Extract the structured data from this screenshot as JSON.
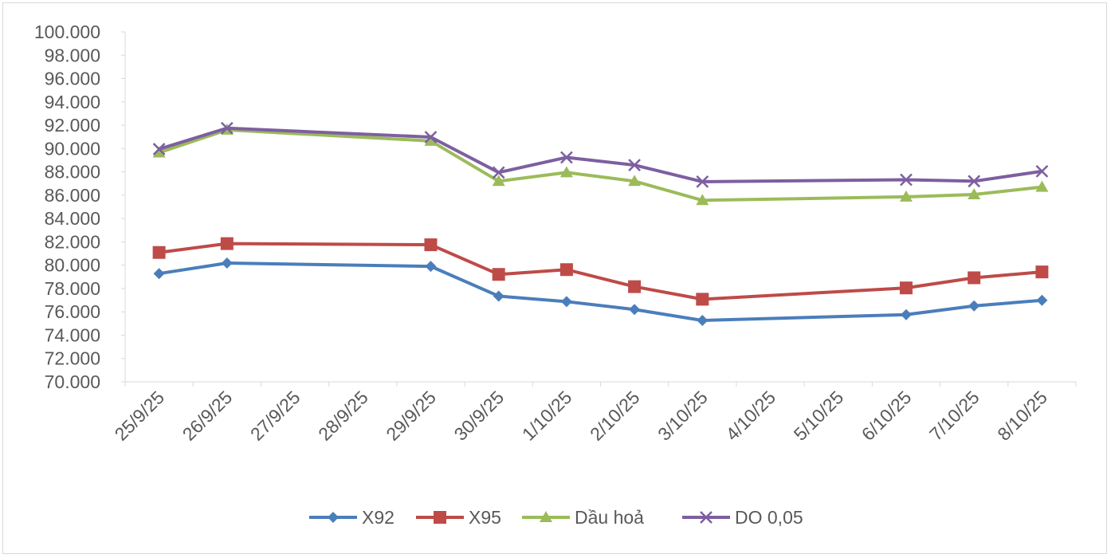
{
  "chart_data": {
    "type": "line",
    "title": "",
    "xlabel": "",
    "ylabel": "",
    "categories": [
      "25/9/25",
      "26/9/25",
      "27/9/25",
      "28/9/25",
      "29/9/25",
      "30/9/25",
      "1/10/25",
      "2/10/25",
      "3/10/25",
      "4/10/25",
      "5/10/25",
      "6/10/25",
      "7/10/25",
      "8/10/25"
    ],
    "ylim": [
      70000,
      100000
    ],
    "ytick_labels": [
      "70.000",
      "72.000",
      "74.000",
      "76.000",
      "78.000",
      "80.000",
      "82.000",
      "84.000",
      "86.000",
      "88.000",
      "90.000",
      "92.000",
      "94.000",
      "96.000",
      "98.000",
      "100.000"
    ],
    "grid": false,
    "legend_position": "bottom",
    "series": [
      {
        "name": "X92",
        "color": "#4a7ebb",
        "marker": "diamond",
        "values": [
          79280,
          80180,
          null,
          null,
          79900,
          77350,
          76880,
          76200,
          75260,
          null,
          null,
          75760,
          76510,
          76990
        ]
      },
      {
        "name": "X95",
        "color": "#be4b48",
        "marker": "square",
        "values": [
          81090,
          81850,
          null,
          null,
          81750,
          79210,
          79620,
          78160,
          77080,
          null,
          null,
          78050,
          78920,
          79420
        ]
      },
      {
        "name": "Dầu hoả",
        "color": "#9bbb59",
        "marker": "triangle",
        "values": [
          89650,
          91600,
          null,
          null,
          90650,
          87200,
          87950,
          87200,
          85560,
          null,
          null,
          85860,
          86060,
          86700
        ]
      },
      {
        "name": "DO 0,05",
        "color": "#7d5fa0",
        "marker": "x",
        "values": [
          89950,
          91750,
          null,
          null,
          90980,
          87950,
          89240,
          88580,
          87160,
          null,
          null,
          87320,
          87200,
          88050
        ]
      }
    ]
  }
}
